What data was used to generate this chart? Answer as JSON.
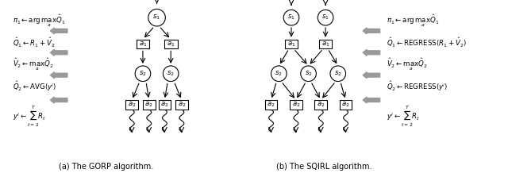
{
  "fig_width": 6.4,
  "fig_height": 2.23,
  "dpi": 100,
  "background": "#ffffff",
  "caption_a": "(a) The GORP algorithm.",
  "caption_b": "(b) The SQIRL algorithm.",
  "gorp_equations": [
    "$\\pi_1 \\leftarrow \\arg\\max_a \\hat{Q}_1$",
    "$\\hat{Q}_1 \\leftarrow R_1 + \\hat{V}_2$",
    "$\\hat{V}_2 \\leftarrow \\max_a \\hat{Q}_2$",
    "$\\hat{Q}_2 \\leftarrow \\mathrm{AVG}(y^i)$",
    "$y^i \\leftarrow \\sum_{t=2}^{T} R_t$"
  ],
  "sqirl_equations": [
    "$\\pi_1 \\leftarrow \\arg\\max_a \\hat{Q}_1$",
    "$\\hat{Q}_1 \\leftarrow \\mathrm{REGRESS}(R_1 + \\hat{V}_2)$",
    "$\\hat{V}_2 \\leftarrow \\max_a \\hat{Q}_2$",
    "$\\hat{Q}_2 \\leftarrow \\mathrm{REGRESS}(y^i)$",
    "$y^i \\leftarrow \\sum_{t=2}^{T} R_t$"
  ],
  "arrow_color": "#888888",
  "node_color": "#ffffff",
  "node_edge": "#000000",
  "text_color": "#000000"
}
